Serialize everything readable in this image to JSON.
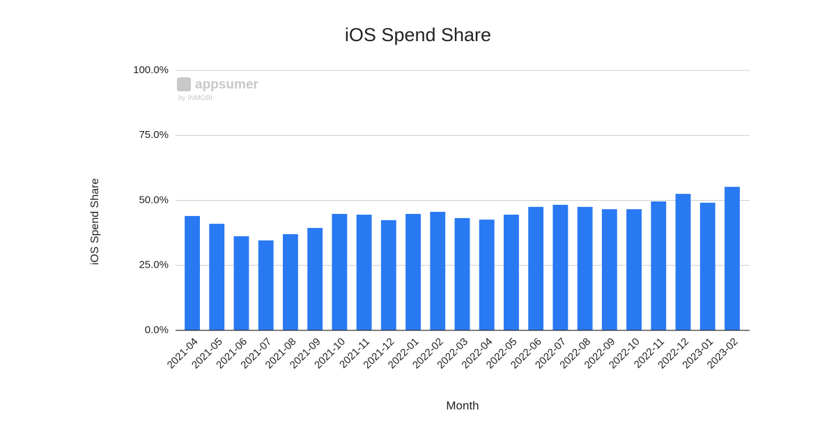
{
  "chart_data": {
    "type": "bar",
    "title": "iOS Spend Share",
    "x_label": "Month",
    "y_label": "iOS Spend Share",
    "watermark": "appsumer",
    "watermark_sub": "by INMOBI",
    "categories": [
      "2021-04",
      "2021-05",
      "2021-06",
      "2021-07",
      "2021-08",
      "2021-09",
      "2021-10",
      "2021-11",
      "2021-12",
      "2022-01",
      "2022-02",
      "2022-03",
      "2022-04",
      "2022-05",
      "2022-06",
      "2022-07",
      "2022-08",
      "2022-09",
      "2022-10",
      "2022-11",
      "2022-12",
      "2023-01",
      "2023-02"
    ],
    "values": [
      44.0,
      41.0,
      36.2,
      34.6,
      37.0,
      39.4,
      44.8,
      44.5,
      42.4,
      44.8,
      45.6,
      43.2,
      42.6,
      44.5,
      47.5,
      48.3,
      47.5,
      46.6,
      46.6,
      49.6,
      52.5,
      49.1,
      55.2
    ],
    "color": "#2979f2",
    "ylim": [
      0,
      100
    ],
    "yticks": [
      {
        "value": 0,
        "label": "0.0%"
      },
      {
        "value": 25,
        "label": "25.0%"
      },
      {
        "value": 50,
        "label": "50.0%"
      },
      {
        "value": 75,
        "label": "75.0%"
      },
      {
        "value": 100,
        "label": "100.0%"
      }
    ],
    "grid": true
  }
}
